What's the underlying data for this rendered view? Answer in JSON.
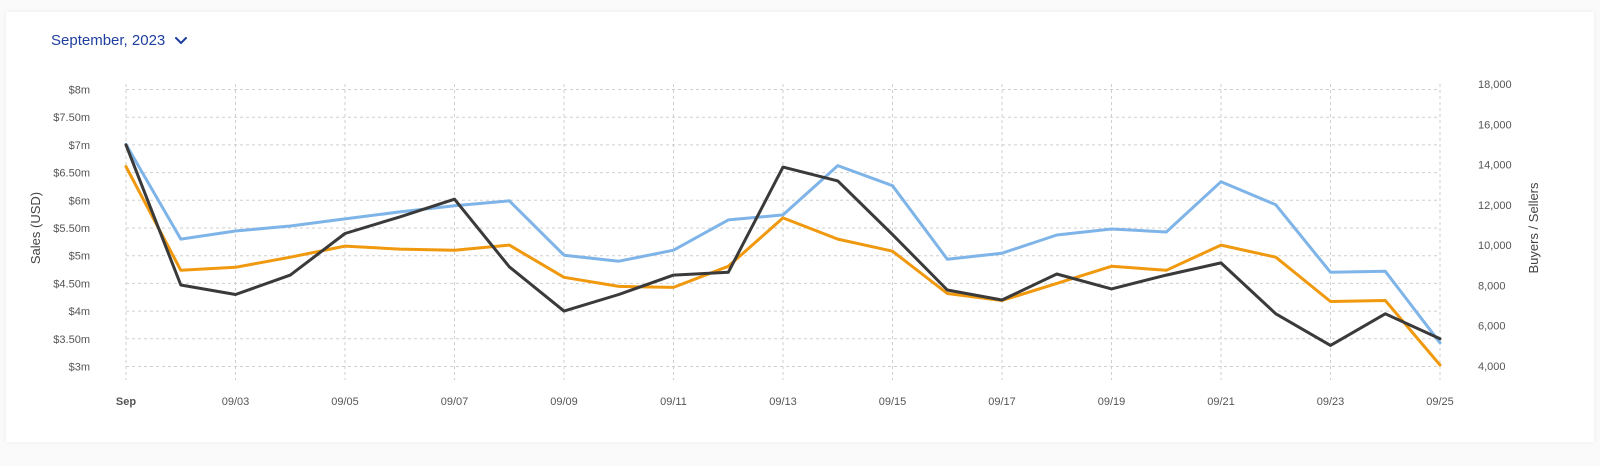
{
  "period_selector": {
    "label": "September, 2023",
    "icon": "chevron-down-icon"
  },
  "colors": {
    "sales": "#3a3a3a",
    "buyers": "#f0990e",
    "sellers": "#7eb4e8",
    "grid": "#cfcfcf",
    "accent": "#1f3fa0"
  },
  "chart_data": {
    "type": "line",
    "x": [
      "Sep",
      "09/02",
      "09/03",
      "09/04",
      "09/05",
      "09/06",
      "09/07",
      "09/08",
      "09/09",
      "09/10",
      "09/11",
      "09/12",
      "09/13",
      "09/14",
      "09/15",
      "09/16",
      "09/17",
      "09/18",
      "09/19",
      "09/20",
      "09/21",
      "09/22",
      "09/23",
      "09/24",
      "09/25"
    ],
    "x_tick_labels": [
      "Sep",
      "09/03",
      "09/05",
      "09/07",
      "09/09",
      "09/11",
      "09/13",
      "09/15",
      "09/17",
      "09/19",
      "09/21",
      "09/23",
      "09/25"
    ],
    "y_left": {
      "label": "Sales (USD)",
      "ylim": [
        2.9,
        8.1
      ],
      "ticks": [
        3,
        3.5,
        4,
        4.5,
        5,
        5.5,
        6,
        6.5,
        7,
        7.5,
        8
      ],
      "tick_labels": [
        "$3m",
        "$3.50m",
        "$4m",
        "$4.50m",
        "$5m",
        "$5.50m",
        "$6m",
        "$6.50m",
        "$7m",
        "$7.50m",
        "$8m"
      ]
    },
    "y_right": {
      "label": "Buyers / Sellers",
      "ylim": [
        3700,
        18000
      ],
      "ticks": [
        4000,
        6000,
        8000,
        10000,
        12000,
        14000,
        16000,
        18000
      ],
      "tick_labels": [
        "4,000",
        "6,000",
        "8,000",
        "10,000",
        "12,000",
        "14,000",
        "16,000",
        "18,000"
      ]
    },
    "grid": true,
    "series": [
      {
        "axis": "left",
        "color": "#3a3a3a",
        "values": [
          7.0,
          4.47,
          4.3,
          4.65,
          5.4,
          5.7,
          6.02,
          4.8,
          4.0,
          4.3,
          4.65,
          4.7,
          6.6,
          6.35,
          5.38,
          4.38,
          4.2,
          4.67,
          4.4,
          4.65,
          4.87,
          3.95,
          3.38,
          3.95,
          3.5
        ]
      },
      {
        "axis": "right",
        "color": "#f0990e",
        "values": [
          13.9,
          8.75,
          8.9,
          9.4,
          9.95,
          9.8,
          9.75,
          10.0,
          8.4,
          7.95,
          7.9,
          8.95,
          11.35,
          10.3,
          9.7,
          7.6,
          7.25,
          8.1,
          8.95,
          8.75,
          10.0,
          9.4,
          7.2,
          7.25,
          4.05
        ]
      },
      {
        "axis": "right",
        "color": "#7eb4e8",
        "values": [
          15.0,
          10.3,
          10.7,
          10.95,
          11.3,
          11.65,
          11.95,
          12.2,
          9.5,
          9.2,
          9.75,
          11.25,
          11.5,
          13.95,
          12.95,
          9.3,
          9.6,
          10.5,
          10.8,
          10.65,
          13.15,
          12.0,
          8.65,
          8.7,
          5.15
        ]
      }
    ]
  }
}
